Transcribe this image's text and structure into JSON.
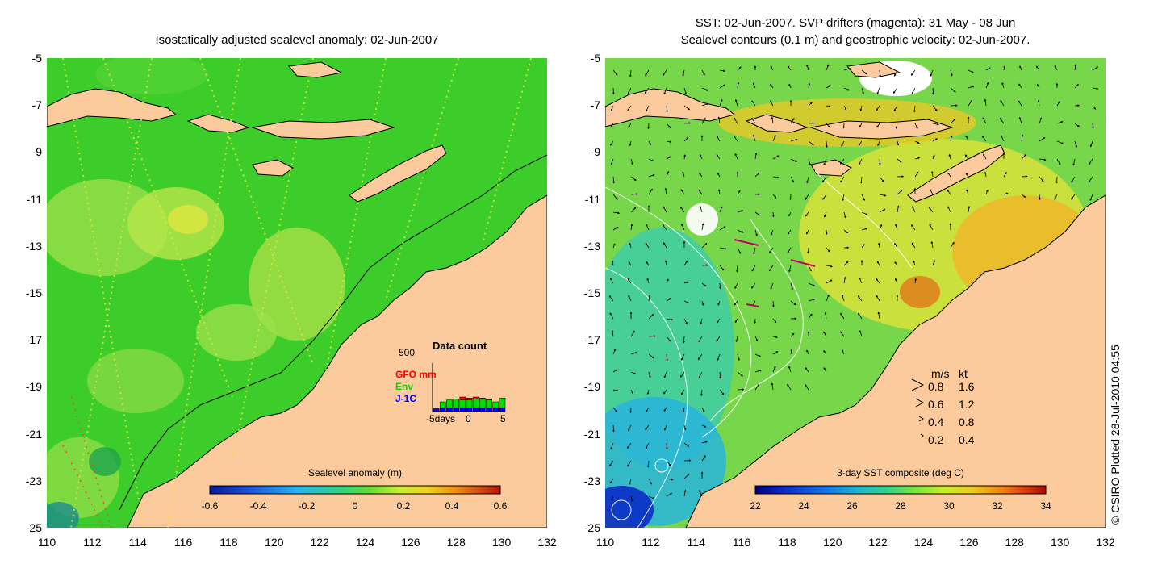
{
  "panels": {
    "left": {
      "title": "Isostatically adjusted sealevel anomaly: 02-Jun-2007",
      "colorbar": {
        "title": "Sealevel anomaly (m)",
        "ticks": [
          "-0.6",
          "-0.4",
          "-0.2",
          "0",
          "0.2",
          "0.4",
          "0.6"
        ],
        "colors": [
          "#0a1a96",
          "#1e5adc",
          "#28b4f0",
          "#32d282",
          "#64dc32",
          "#c8f032",
          "#f0d21e",
          "#f08c14",
          "#dc3c0a",
          "#b4140a"
        ]
      },
      "data_count": {
        "title": "Data count",
        "ymax_label": "500",
        "series_labels": [
          {
            "name": "GFO mm",
            "color": "#ff0000"
          },
          {
            "name": "Env",
            "color": "#00dd00"
          },
          {
            "name": "J-1C",
            "color": "#0000ff"
          }
        ],
        "xtick_labels": [
          "-5days",
          "0",
          "5"
        ],
        "days": [
          -5,
          -4,
          -3,
          -2,
          -1,
          0,
          1,
          2,
          3,
          4,
          5
        ],
        "j1c": [
          30,
          40,
          40,
          40,
          40,
          40,
          40,
          40,
          40,
          40,
          40
        ],
        "env": [
          0,
          60,
          80,
          90,
          80,
          80,
          90,
          90,
          80,
          60,
          100
        ],
        "gfo": [
          0,
          0,
          0,
          0,
          30,
          20,
          20,
          10,
          10,
          0,
          0
        ]
      }
    },
    "right": {
      "title_line1": "SST: 02-Jun-2007. SVP drifters (magenta): 31 May - 08 Jun",
      "title_line2": "Sealevel contours (0.1 m) and geostrophic velocity: 02-Jun-2007.",
      "colorbar": {
        "title": "3-day SST composite (deg C)",
        "ticks": [
          "22",
          "24",
          "26",
          "28",
          "30",
          "32",
          "34"
        ],
        "colors": [
          "#00007d",
          "#0a2cc8",
          "#1478e6",
          "#1eb4d2",
          "#32d28c",
          "#78e63c",
          "#c8f028",
          "#f0c81e",
          "#f08214",
          "#dc3c0a",
          "#a00a0a"
        ]
      },
      "velocity_legend": {
        "header_ms": "m/s",
        "header_kt": "kt",
        "rows": [
          {
            "ms": "0.8",
            "kt": "1.6"
          },
          {
            "ms": "0.6",
            "kt": "1.2"
          },
          {
            "ms": "0.4",
            "kt": "0.8"
          },
          {
            "ms": "0.2",
            "kt": "0.4"
          }
        ]
      }
    }
  },
  "axes": {
    "lon_labels": [
      "110",
      "112",
      "114",
      "116",
      "118",
      "120",
      "122",
      "124",
      "126",
      "128",
      "130",
      "132"
    ],
    "lat_labels": [
      "-5",
      "-7",
      "-9",
      "-11",
      "-13",
      "-15",
      "-17",
      "-19",
      "-21",
      "-23",
      "-25"
    ],
    "lon_range": [
      110,
      132
    ],
    "lat_range": [
      -25,
      -5
    ]
  },
  "copyright": "© CSIRO Plotted 28-Jul-2010 04:55",
  "colors": {
    "land": "#fbcb9e",
    "sla_background": "#3ccd2a",
    "sst_background": "#78d64a"
  }
}
